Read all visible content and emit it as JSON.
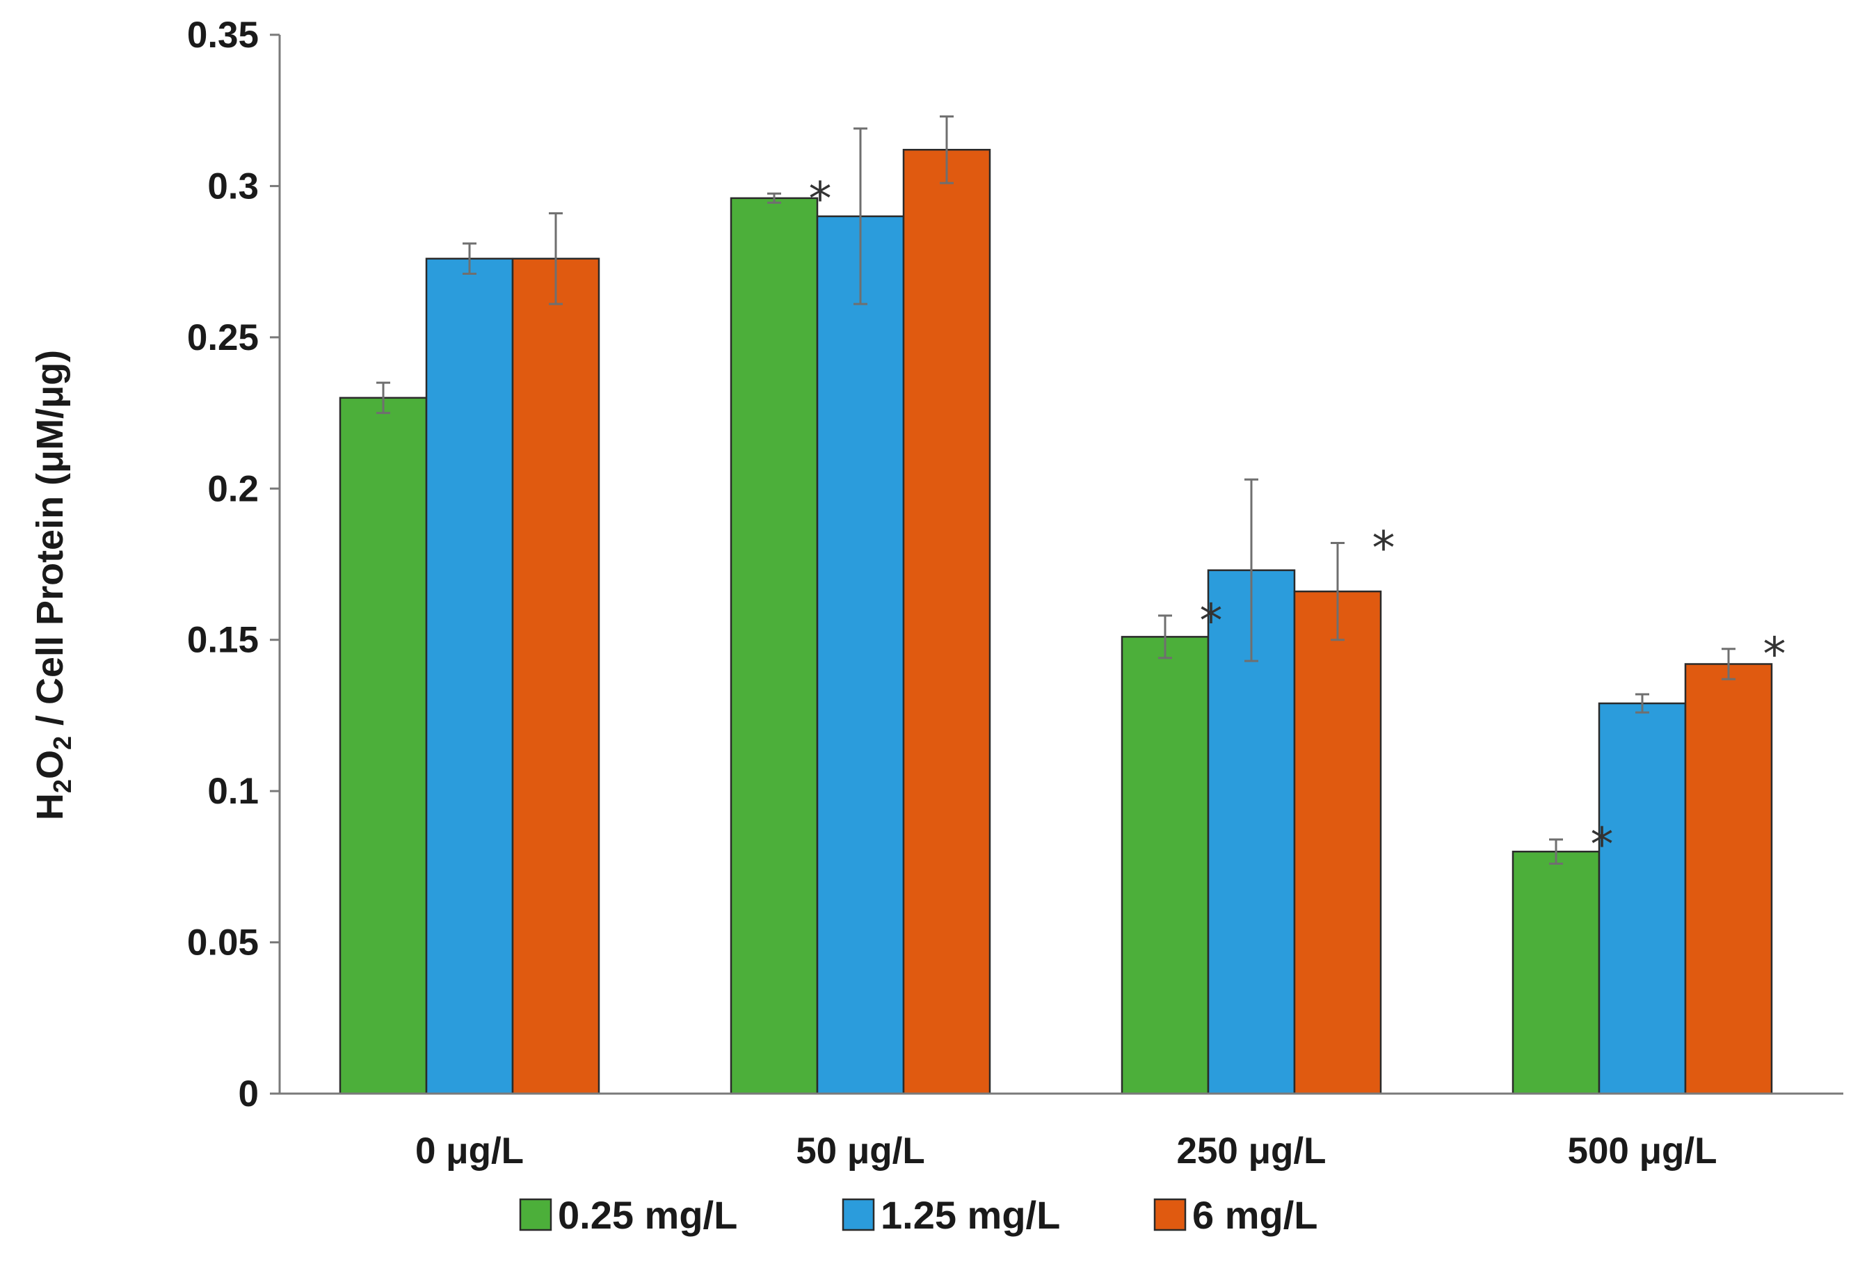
{
  "chart_data": {
    "type": "bar",
    "title": "",
    "xlabel": "",
    "ylabel": {
      "prefix": "H",
      "sub1": "2",
      "mid": "O",
      "sub2": "2",
      "suffix": " / Cell Protein (μM/μg)"
    },
    "ylim": [
      0,
      0.35
    ],
    "yticks": [
      0,
      0.05,
      0.1,
      0.15,
      0.2,
      0.25,
      0.3,
      0.35
    ],
    "ytick_labels": [
      "0",
      "0.05",
      "0.1",
      "0.15",
      "0.2",
      "0.25",
      "0.3",
      "0.35"
    ],
    "categories": [
      "0 μg/L",
      "50 μg/L",
      "250 μg/L",
      "500 μg/L"
    ],
    "grid": false,
    "legend_position": "bottom",
    "series": [
      {
        "name": "0.25 mg/L",
        "color": "#4caf3a",
        "values": [
          0.23,
          0.296,
          0.151,
          0.08
        ],
        "errors": [
          0.005,
          0.0015,
          0.007,
          0.004
        ],
        "significance": [
          "",
          "*",
          "*",
          "*"
        ]
      },
      {
        "name": "1.25 mg/L",
        "color": "#2b9cdc",
        "values": [
          0.276,
          0.29,
          0.173,
          0.129
        ],
        "errors": [
          0.005,
          0.029,
          0.03,
          0.003
        ],
        "significance": [
          "",
          "",
          "",
          ""
        ]
      },
      {
        "name": "6 mg/L",
        "color": "#e05a10",
        "values": [
          0.276,
          0.312,
          0.166,
          0.142
        ],
        "errors": [
          0.015,
          0.011,
          0.016,
          0.005
        ],
        "significance": [
          "",
          "",
          "*",
          "*"
        ]
      }
    ]
  }
}
